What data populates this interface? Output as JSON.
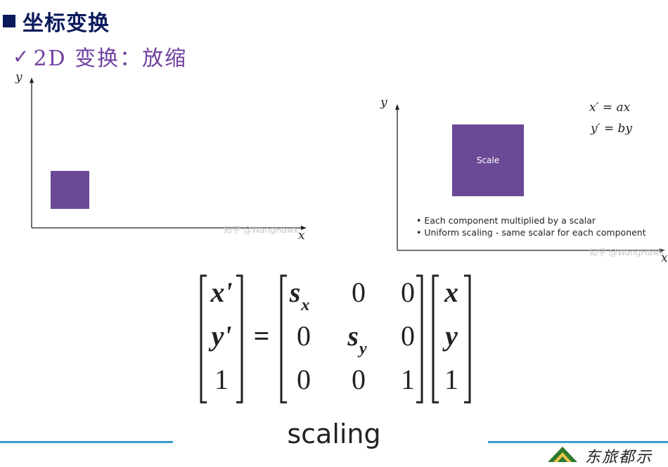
{
  "header": {
    "title": "坐标变换",
    "subtitle_check": "✓",
    "subtitle": "2D 变换：放缩"
  },
  "left_figure": {
    "y_label": "y",
    "x_label": "x",
    "square_color": "#6a4a96",
    "watermark": "知乎 @WangHawk"
  },
  "right_figure": {
    "y_label": "y",
    "x_label": "x",
    "square_label": "Scale",
    "square_color": "#6a4a96",
    "equation_1": "x′ = ax",
    "equation_2": "y′ = by",
    "bullets": [
      "Each component multiplied by a scalar",
      "Uniform scaling - same scalar for each component"
    ],
    "watermark": "知乎 @WangHawk"
  },
  "matrix": {
    "left_vector": [
      "x'",
      "y'",
      "1"
    ],
    "equals": "=",
    "m11_base": "s",
    "m11_sub": "x",
    "m12": "0",
    "m13": "0",
    "m21": "0",
    "m22_base": "s",
    "m22_sub": "y",
    "m23": "0",
    "m31": "0",
    "m32": "0",
    "m33": "1",
    "right_vector": [
      "x",
      "y",
      "1"
    ]
  },
  "footer": {
    "caption": "scaling",
    "logo_text": "东旅都示"
  }
}
